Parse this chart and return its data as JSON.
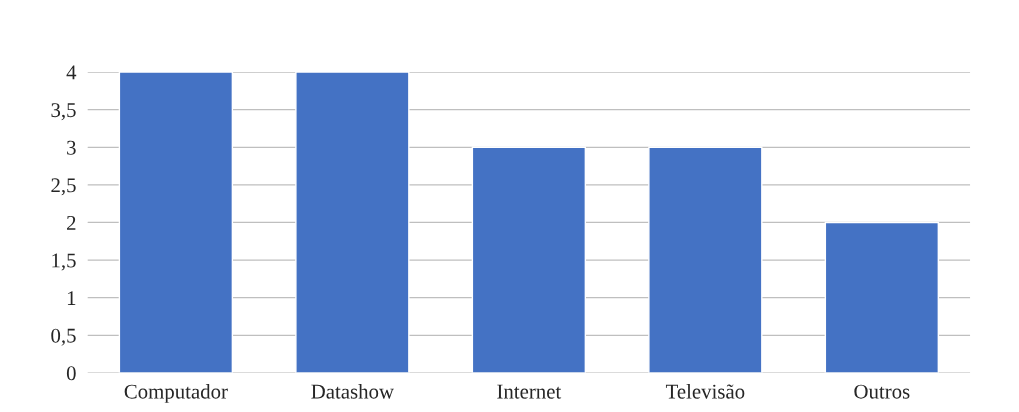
{
  "chart_data": {
    "type": "bar",
    "categories": [
      "Computador",
      "Datashow",
      "Internet",
      "Televisão",
      "Outros"
    ],
    "values": [
      4,
      4,
      3,
      3,
      2
    ],
    "color": "#4472c4",
    "ylim": [
      0,
      4
    ],
    "yticks": [
      0,
      {
        "value": 0.5,
        "label": "0,5"
      },
      1,
      {
        "value": 1.5,
        "label": "1,5"
      },
      2,
      {
        "value": 2.5,
        "label": "2,5"
      },
      3,
      {
        "value": 3.5,
        "label": "3,5"
      },
      4
    ],
    "grid": "y"
  }
}
